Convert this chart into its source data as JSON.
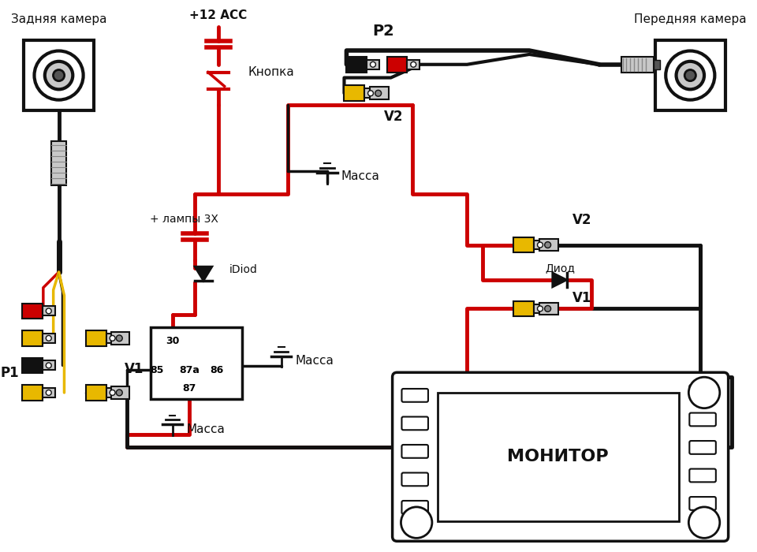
{
  "bg": "#ffffff",
  "red": "#cc0000",
  "black": "#111111",
  "yellow": "#e8b800",
  "lgray": "#c8c8c8",
  "dgray": "#555555",
  "mgray": "#888888",
  "white": "#ffffff",
  "texts": {
    "rear_cam": "Задняя камера",
    "front_cam": "Передняя камера",
    "plus12acc": "+12 ACC",
    "button": "Кнопка",
    "lamp_plus": "+ лампы 3Х",
    "idiod": "iDiod",
    "massa1": "Масса",
    "massa2": "Масса",
    "massa3": "Масса",
    "p1": "P1",
    "p2": "P2",
    "v1l": "V1",
    "v2l": "V2",
    "v1r": "V1",
    "v2r": "V2",
    "diod": "Диод",
    "monitor": "МОНИТОР",
    "r30": "30",
    "r85": "85",
    "r87a": "87a",
    "r86": "86",
    "r87": "87"
  }
}
